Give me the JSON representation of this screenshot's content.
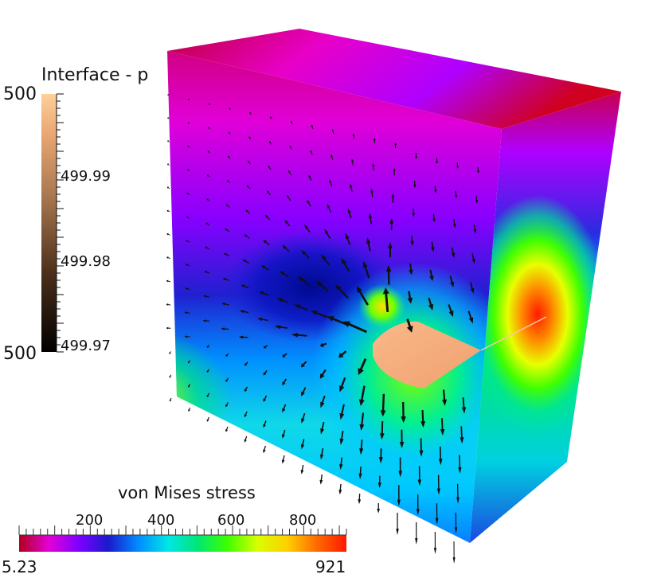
{
  "pressure_legend": {
    "title": "Interface - p",
    "range_max_label": "500",
    "range_min_label": "500",
    "ticks": [
      "499.99",
      "499.98",
      "499.97"
    ],
    "colors": [
      "#000000",
      "#5a3a22",
      "#b8825a",
      "#f3b07c",
      "#ffd29a"
    ]
  },
  "stress_legend": {
    "title": "von Mises stress",
    "min_label": "5.23",
    "max_label": "921",
    "ticks": [
      "200",
      "400",
      "600",
      "800"
    ],
    "colormap": [
      "#b0001c",
      "#e400d6",
      "#7e00ff",
      "#1a1acc",
      "#008cff",
      "#00e6e6",
      "#00e676",
      "#3cff00",
      "#d8ff00",
      "#ffd000",
      "#ff6a00",
      "#ff1a00"
    ]
  },
  "interface_color": "#f7ad7d",
  "arrow_color": "#111111"
}
